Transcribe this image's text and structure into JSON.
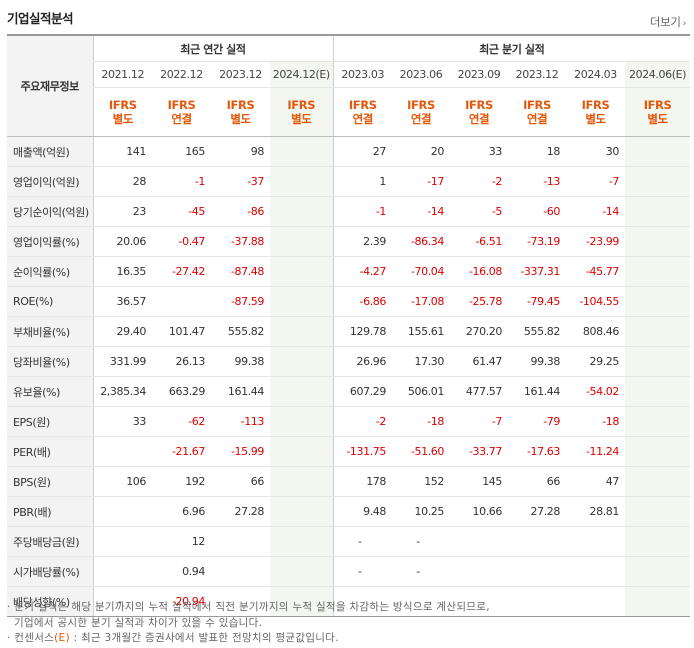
{
  "title": "기업실적분석",
  "more_label": "더보기",
  "more_arrow": "›",
  "corner_label": "주요재무정보",
  "annual_label": "최근 연간 실적",
  "quarter_label": "최근 분기 실적",
  "annual_periods": [
    "2021.12",
    "2022.12",
    "2023.12",
    "2024.12(E)"
  ],
  "quarter_periods": [
    "2023.03",
    "2023.06",
    "2023.09",
    "2023.12",
    "2024.03",
    "2024.06(E)"
  ],
  "annual_ifrs": [
    [
      "IFRS",
      "별도"
    ],
    [
      "IFRS",
      "연결"
    ],
    [
      "IFRS",
      "별도"
    ],
    [
      "IFRS",
      "별도"
    ]
  ],
  "quarter_ifrs": [
    [
      "IFRS",
      "연결"
    ],
    [
      "IFRS",
      "연결"
    ],
    [
      "IFRS",
      "연결"
    ],
    [
      "IFRS",
      "연결"
    ],
    [
      "IFRS",
      "별도"
    ],
    [
      "IFRS",
      "별도"
    ]
  ],
  "rows": [
    {
      "label": "매출액(억원)",
      "annual": [
        "141",
        "165",
        "98",
        ""
      ],
      "quarter": [
        "27",
        "20",
        "33",
        "18",
        "30",
        ""
      ]
    },
    {
      "label": "영업이익(억원)",
      "annual": [
        "28",
        "-1",
        "-37",
        ""
      ],
      "quarter": [
        "1",
        "-17",
        "-2",
        "-13",
        "-7",
        ""
      ]
    },
    {
      "label": "당기순이익(억원)",
      "annual": [
        "23",
        "-45",
        "-86",
        ""
      ],
      "quarter": [
        "-1",
        "-14",
        "-5",
        "-60",
        "-14",
        ""
      ]
    },
    {
      "label": "영업이익률(%)",
      "annual": [
        "20.06",
        "-0.47",
        "-37.88",
        ""
      ],
      "quarter": [
        "2.39",
        "-86.34",
        "-6.51",
        "-73.19",
        "-23.99",
        ""
      ]
    },
    {
      "label": "순이익률(%)",
      "annual": [
        "16.35",
        "-27.42",
        "-87.48",
        ""
      ],
      "quarter": [
        "-4.27",
        "-70.04",
        "-16.08",
        "-337.31",
        "-45.77",
        ""
      ]
    },
    {
      "label": "ROE(%)",
      "annual": [
        "36.57",
        "",
        "-87.59",
        ""
      ],
      "quarter": [
        "-6.86",
        "-17.08",
        "-25.78",
        "-79.45",
        "-104.55",
        ""
      ]
    },
    {
      "label": "부채비율(%)",
      "annual": [
        "29.40",
        "101.47",
        "555.82",
        ""
      ],
      "quarter": [
        "129.78",
        "155.61",
        "270.20",
        "555.82",
        "808.46",
        ""
      ]
    },
    {
      "label": "당좌비율(%)",
      "annual": [
        "331.99",
        "26.13",
        "99.38",
        ""
      ],
      "quarter": [
        "26.96",
        "17.30",
        "61.47",
        "99.38",
        "29.25",
        ""
      ]
    },
    {
      "label": "유보율(%)",
      "annual": [
        "2,385.34",
        "663.29",
        "161.44",
        ""
      ],
      "quarter": [
        "607.29",
        "506.01",
        "477.57",
        "161.44",
        "-54.02",
        ""
      ]
    },
    {
      "label": "EPS(원)",
      "annual": [
        "33",
        "-62",
        "-113",
        ""
      ],
      "quarter": [
        "-2",
        "-18",
        "-7",
        "-79",
        "-18",
        ""
      ]
    },
    {
      "label": "PER(배)",
      "annual": [
        "",
        "-21.67",
        "-15.99",
        ""
      ],
      "quarter": [
        "-131.75",
        "-51.60",
        "-33.77",
        "-17.63",
        "-11.24",
        ""
      ]
    },
    {
      "label": "BPS(원)",
      "annual": [
        "106",
        "192",
        "66",
        ""
      ],
      "quarter": [
        "178",
        "152",
        "145",
        "66",
        "47",
        ""
      ]
    },
    {
      "label": "PBR(배)",
      "annual": [
        "",
        "6.96",
        "27.28",
        ""
      ],
      "quarter": [
        "9.48",
        "10.25",
        "10.66",
        "27.28",
        "28.81",
        ""
      ]
    },
    {
      "label": "주당배당금(원)",
      "annual": [
        "",
        "12",
        "",
        ""
      ],
      "quarter": [
        "-",
        "-",
        "",
        "",
        "",
        ""
      ]
    },
    {
      "label": "시가배당률(%)",
      "annual": [
        "",
        "0.94",
        "",
        ""
      ],
      "quarter": [
        "-",
        "-",
        "",
        "",
        "",
        ""
      ]
    },
    {
      "label": "배당성향(%)",
      "annual": [
        "-",
        "-20.94",
        "",
        ""
      ],
      "quarter": [
        "",
        "",
        "",
        "",
        "",
        ""
      ]
    }
  ],
  "notes": [
    "분기 실적은 해당 분기까지의 누적 실적에서 직전 분기까지의 누적 실적을 차감하는 방식으로 계산되므로,",
    "기업에서 공시한 분기 실적과 차이가 있을 수 있습니다."
  ],
  "note3": {
    "prefix": "컨센서스",
    "est": "(E)",
    "suffix": " : 최근 3개월간 증권사에서 발표한 전망치의 평균값입니다."
  },
  "colors": {
    "accent": "#e5580c",
    "negative": "#dd0000",
    "estimate_bg": "#f3f7ef",
    "header_bg": "#f3f3f3"
  }
}
